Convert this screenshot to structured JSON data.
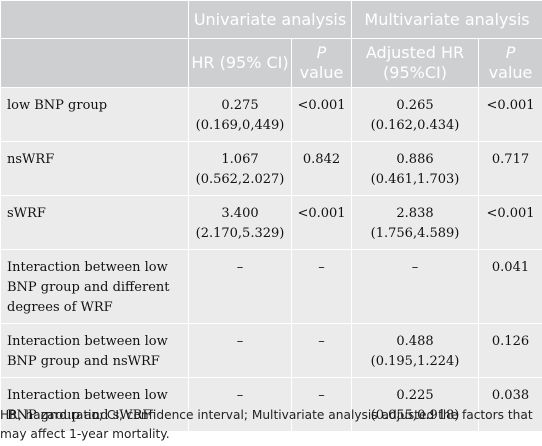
{
  "header": {
    "univariate": "Univariate analysis",
    "multivariate": "Multivariate analysis",
    "hr_ci": "HR (95% CI)",
    "p": "P",
    "value": "value",
    "adj_hr": "Adjusted HR (95%CI)"
  },
  "rows": [
    {
      "label": "low BNP group",
      "u_hr": "0.275",
      "u_ci": "(0.169,0,449)",
      "u_p": "<0.001",
      "m_hr": "0.265",
      "m_ci": "(0.162,0.434)",
      "m_p": "<0.001"
    },
    {
      "label": "nsWRF",
      "u_hr": "1.067",
      "u_ci": "(0.562,2.027)",
      "u_p": "0.842",
      "m_hr": "0.886",
      "m_ci": "(0.461,1.703)",
      "m_p": "0.717"
    },
    {
      "label": "sWRF",
      "u_hr": "3.400",
      "u_ci": "(2.170,5.329)",
      "u_p": "<0.001",
      "m_hr": "2.838",
      "m_ci": "(1.756,4.589)",
      "m_p": "<0.001"
    },
    {
      "label": "Interaction between low BNP group and different degrees of WRF",
      "u_hr": "–",
      "u_ci": "",
      "u_p": "–",
      "m_hr": "–",
      "m_ci": "",
      "m_p": "0.041"
    },
    {
      "label": "Interaction between low BNP group and nsWRF",
      "u_hr": "–",
      "u_ci": "",
      "u_p": "–",
      "m_hr": "0.488",
      "m_ci": "(0.195,1.224)",
      "m_p": "0.126"
    },
    {
      "label": "Interaction between low BNP group and sWRF",
      "u_hr": "–",
      "u_ci": "",
      "u_p": "–",
      "m_hr": "0.225",
      "m_ci": "(0.055,0.918)",
      "m_p": "0.038"
    }
  ],
  "footnote": "HR, hazard ratio; CI, confidence interval; Multivariate analysis adjusted the factors that may affect 1-year mortality."
}
